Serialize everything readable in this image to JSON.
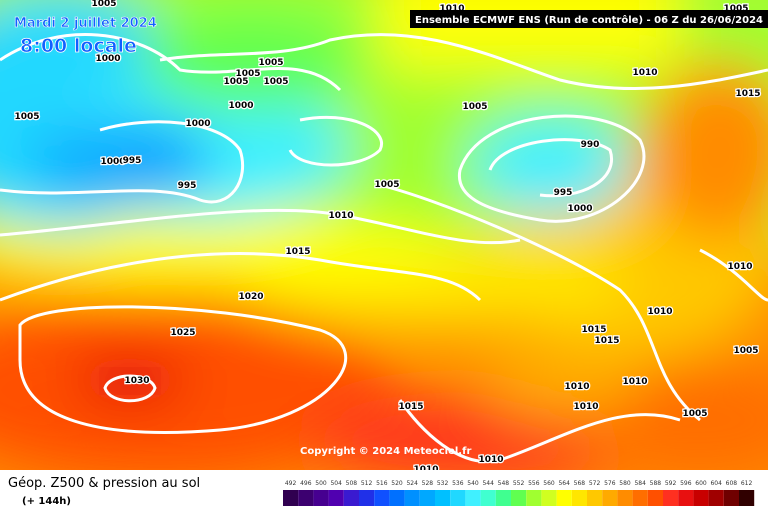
{
  "header": {
    "date": "Mardi 2 juillet 2024",
    "time": "8:00 locale",
    "run": "Ensemble ECMWF ENS  (Run de contrôle)  - 06 Z du 26/06/2024"
  },
  "copyright": "Copyright © 2024 Meteociel.fr",
  "footer": {
    "product": "Géop. Z500 & pression au sol",
    "step": "(+ 144h)"
  },
  "isobar_labels": [
    "1005",
    "1000",
    "1005",
    "1005",
    "1005",
    "1005",
    "1005",
    "1000",
    "1000",
    "1000",
    "995",
    "995",
    "1010",
    "1005",
    "1010",
    "1015",
    "1005",
    "990",
    "995",
    "1000",
    "1005",
    "1010",
    "1015",
    "1020",
    "1025",
    "1030",
    "1010",
    "1010",
    "1015",
    "1015",
    "1005",
    "1010",
    "1010",
    "1010",
    "1005",
    "1015",
    "1010",
    "1010"
  ],
  "legend": {
    "values": [
      492,
      496,
      500,
      504,
      508,
      512,
      516,
      520,
      524,
      528,
      532,
      536,
      540,
      544,
      548,
      552,
      556,
      560,
      564,
      568,
      572,
      576,
      580,
      584,
      588,
      592,
      596,
      600,
      604,
      608,
      612
    ],
    "colors": [
      "#300050",
      "#3c0070",
      "#460090",
      "#5000b0",
      "#3a1ad0",
      "#2030e8",
      "#1050ff",
      "#0070ff",
      "#0090ff",
      "#00a8ff",
      "#00c0ff",
      "#20d8ff",
      "#40f0ff",
      "#40ffd0",
      "#40ff90",
      "#60ff50",
      "#a0ff30",
      "#d0ff20",
      "#ffff00",
      "#ffe600",
      "#ffc800",
      "#ffaa00",
      "#ff8c00",
      "#ff6e00",
      "#ff5000",
      "#ff3020",
      "#e81010",
      "#c80000",
      "#a00000",
      "#700000",
      "#300000"
    ]
  }
}
